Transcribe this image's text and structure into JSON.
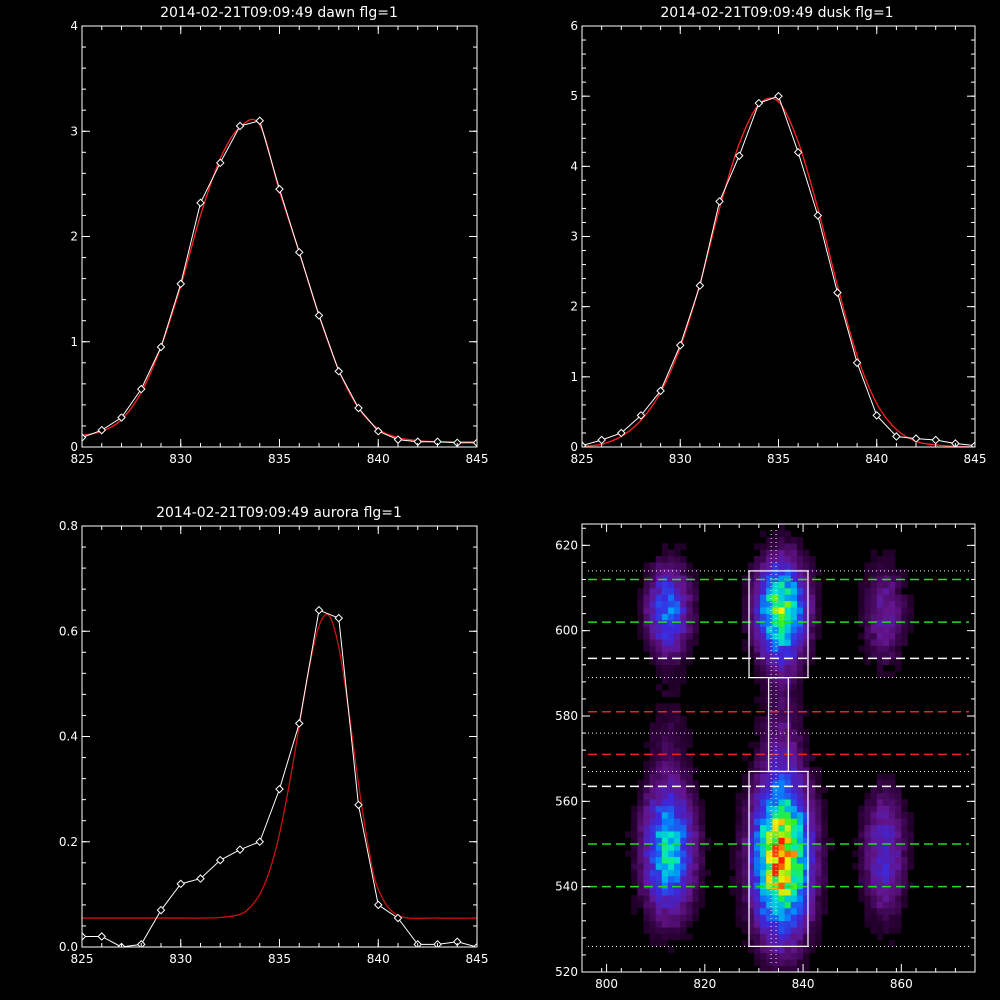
{
  "chart_data": [
    {
      "id": "dawn",
      "type": "line",
      "title": "2014-02-21T09:09:49 dawn flg=1",
      "xlim": [
        825,
        845
      ],
      "ylim": [
        0,
        4
      ],
      "xticks": [
        825,
        830,
        835,
        840,
        845
      ],
      "yticks": [
        0,
        1,
        2,
        3,
        4
      ],
      "series": [
        {
          "style": "observed",
          "color": "#ffffff",
          "marker": "diamond",
          "x": [
            825,
            826,
            827,
            828,
            829,
            830,
            831,
            832,
            833,
            834,
            835,
            836,
            837,
            838,
            839,
            840,
            841,
            842,
            843,
            844,
            845
          ],
          "y": [
            0.09,
            0.16,
            0.28,
            0.55,
            0.95,
            1.55,
            2.32,
            2.7,
            3.05,
            3.1,
            2.45,
            1.85,
            1.25,
            0.72,
            0.37,
            0.15,
            0.07,
            0.05,
            0.05,
            0.04,
            0.04
          ]
        },
        {
          "style": "fit",
          "color": "#ff2020",
          "x": [
            825,
            826,
            827,
            828,
            829,
            830,
            831,
            832,
            833,
            834,
            835,
            836,
            837,
            838,
            839,
            840,
            841,
            842,
            843,
            844,
            845
          ],
          "y": [
            0.11,
            0.15,
            0.26,
            0.52,
            0.95,
            1.53,
            2.2,
            2.74,
            3.04,
            3.06,
            2.43,
            1.85,
            1.25,
            0.73,
            0.37,
            0.17,
            0.09,
            0.06,
            0.05,
            0.05,
            0.05
          ]
        }
      ]
    },
    {
      "id": "dusk",
      "type": "line",
      "title": "2014-02-21T09:09:49 dusk flg=1",
      "xlim": [
        825,
        845
      ],
      "ylim": [
        0,
        6
      ],
      "xticks": [
        825,
        830,
        835,
        840,
        845
      ],
      "yticks": [
        0,
        1,
        2,
        3,
        4,
        5,
        6
      ],
      "series": [
        {
          "style": "observed",
          "color": "#ffffff",
          "marker": "diamond",
          "x": [
            825,
            826,
            827,
            828,
            829,
            830,
            831,
            832,
            833,
            834,
            835,
            836,
            837,
            838,
            839,
            840,
            841,
            842,
            843,
            844,
            845
          ],
          "y": [
            0.02,
            0.1,
            0.2,
            0.45,
            0.8,
            1.45,
            2.3,
            3.5,
            4.15,
            4.9,
            5.0,
            4.2,
            3.3,
            2.2,
            1.2,
            0.45,
            0.15,
            0.12,
            0.1,
            0.05,
            0.02
          ]
        },
        {
          "style": "fit",
          "color": "#ff2020",
          "x": [
            825,
            826,
            827,
            828,
            829,
            830,
            831,
            832,
            833,
            834,
            835,
            836,
            837,
            838,
            839,
            840,
            841,
            842,
            843,
            844,
            845
          ],
          "y": [
            0.01,
            0.04,
            0.15,
            0.38,
            0.78,
            1.42,
            2.32,
            3.4,
            4.32,
            4.88,
            4.92,
            4.35,
            3.4,
            2.3,
            1.3,
            0.62,
            0.25,
            0.08,
            0.03,
            0.01,
            0.0
          ]
        }
      ]
    },
    {
      "id": "aurora",
      "type": "line",
      "title": "2014-02-21T09:09:49 aurora flg=1",
      "xlim": [
        825,
        845
      ],
      "ylim": [
        0,
        0.8
      ],
      "xticks": [
        825,
        830,
        835,
        840,
        845
      ],
      "yticks": [
        0.0,
        0.2,
        0.4,
        0.6,
        0.8
      ],
      "ytick_labels": [
        "0.0",
        "0.2",
        "0.4",
        "0.6",
        "0.8"
      ],
      "series": [
        {
          "style": "observed",
          "color": "#ffffff",
          "marker": "diamond",
          "x": [
            825,
            826,
            827,
            828,
            829,
            830,
            831,
            832,
            833,
            834,
            835,
            836,
            837,
            838,
            839,
            840,
            841,
            842,
            843,
            844,
            845
          ],
          "y": [
            0.02,
            0.02,
            0.0,
            0.005,
            0.07,
            0.12,
            0.13,
            0.165,
            0.185,
            0.2,
            0.3,
            0.425,
            0.64,
            0.625,
            0.27,
            0.08,
            0.055,
            0.005,
            0.005,
            0.01,
            0.0
          ]
        },
        {
          "style": "fit",
          "color": "#cc1010",
          "x": [
            825,
            827,
            829,
            830,
            831,
            832,
            833,
            833.5,
            834,
            834.5,
            835,
            835.5,
            836,
            836.5,
            837,
            837.5,
            838,
            838.5,
            839,
            839.5,
            840,
            841,
            843,
            845
          ],
          "y": [
            0.055,
            0.055,
            0.055,
            0.055,
            0.055,
            0.056,
            0.062,
            0.075,
            0.1,
            0.145,
            0.215,
            0.31,
            0.42,
            0.53,
            0.61,
            0.63,
            0.57,
            0.45,
            0.31,
            0.19,
            0.11,
            0.06,
            0.055,
            0.055
          ]
        }
      ]
    },
    {
      "id": "heatmap",
      "type": "heatmap",
      "title": "",
      "xlim": [
        795,
        875
      ],
      "ylim": [
        520,
        625
      ],
      "xticks": [
        800,
        820,
        840,
        860
      ],
      "yticks": [
        520,
        540,
        560,
        580,
        600,
        620
      ],
      "blobs": [
        {
          "x": 812,
          "y": 604,
          "sx": 3,
          "sy": 7,
          "amp": 0.45
        },
        {
          "x": 812,
          "y": 548,
          "sx": 3.5,
          "sy": 10,
          "amp": 0.6
        },
        {
          "x": 835,
          "y": 604,
          "sx": 3.5,
          "sy": 8,
          "amp": 0.75
        },
        {
          "x": 835,
          "y": 546,
          "sx": 4,
          "sy": 12,
          "amp": 0.95
        },
        {
          "x": 856,
          "y": 603,
          "sx": 3,
          "sy": 8,
          "amp": 0.22
        },
        {
          "x": 856,
          "y": 547,
          "sx": 3,
          "sy": 10,
          "amp": 0.3
        },
        {
          "x": 835,
          "y": 575,
          "sx": 3,
          "sy": 10,
          "amp": 0.12
        },
        {
          "x": 812,
          "y": 575,
          "sx": 3,
          "sy": 8,
          "amp": 0.08
        }
      ],
      "boxes": [
        {
          "x0": 829,
          "x1": 841,
          "y0": 589,
          "y1": 614
        },
        {
          "x0": 829,
          "x1": 841,
          "y0": 526,
          "y1": 567
        },
        {
          "x0": 833,
          "x1": 837,
          "y0": 567,
          "y1": 589
        }
      ],
      "vlines_dotted": [
        833.5,
        834.5
      ],
      "hlines": [
        {
          "y": 612,
          "color": "#22dd22",
          "dash": "dashed"
        },
        {
          "y": 602,
          "color": "#22dd22",
          "dash": "dashed"
        },
        {
          "y": 593.5,
          "color": "#ffffff",
          "dash": "dashed"
        },
        {
          "y": 581,
          "color": "#ee2222",
          "dash": "dashed"
        },
        {
          "y": 571,
          "color": "#ee2222",
          "dash": "dashed"
        },
        {
          "y": 563.5,
          "color": "#ffffff",
          "dash": "dashed"
        },
        {
          "y": 550,
          "color": "#22dd22",
          "dash": "dashed"
        },
        {
          "y": 540,
          "color": "#22dd22",
          "dash": "dashed"
        },
        {
          "y": 614,
          "color": "#ffffff",
          "dash": "dotted"
        },
        {
          "y": 589,
          "color": "#ffffff",
          "dash": "dotted"
        },
        {
          "y": 576,
          "color": "#ffffff",
          "dash": "dotted"
        },
        {
          "y": 567,
          "color": "#ffffff",
          "dash": "dotted"
        },
        {
          "y": 526,
          "color": "#ffffff",
          "dash": "dotted"
        }
      ]
    }
  ]
}
